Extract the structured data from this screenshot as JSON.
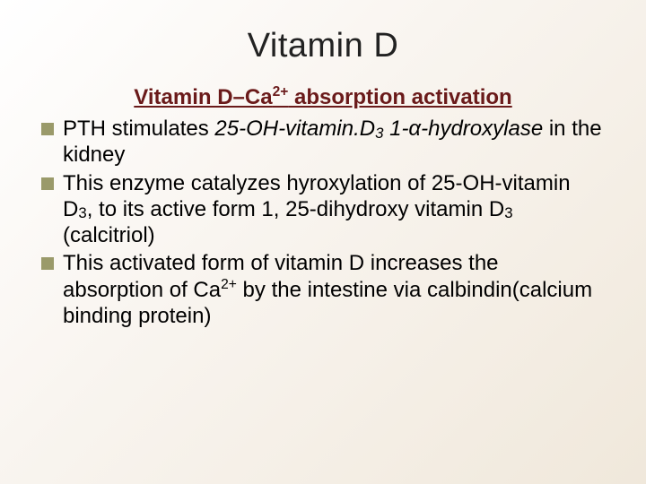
{
  "colors": {
    "subtitle_color": "#6a1a1a",
    "bullet_marker": "#9a9a6a",
    "text_color": "#000000",
    "bg_gradient_start": "#ffffff",
    "bg_gradient_end": "#f0e8db"
  },
  "typography": {
    "title_fontsize": 38,
    "subtitle_fontsize": 24,
    "body_fontsize": 24,
    "font_family": "Arial"
  },
  "slide": {
    "title": "Vitamin D",
    "subtitle_html": "Vitamin D–Ca<sup>2+</sup> absorption activation",
    "bullets": [
      "PTH stimulates <span class=\"italic\">25-OH-vitamin.D<sub>3</sub> 1-α-hydroxylase</span> in the kidney",
      "This enzyme catalyzes hyroxylation of 25-OH-vitamin D<sub>3</sub>, to its active form 1, 25-dihydroxy vitamin D<sub>3</sub> (calcitriol)",
      "This activated form of vitamin D increases the absorption of Ca<sup>2+</sup> by the intestine via calbindin(calcium binding protein)"
    ]
  }
}
